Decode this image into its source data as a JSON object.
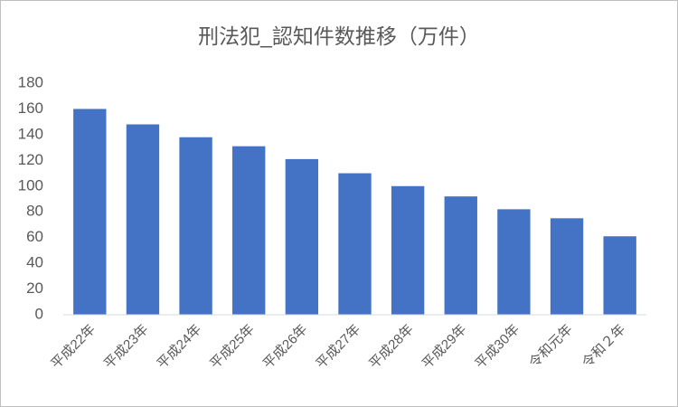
{
  "chart_data": {
    "type": "bar",
    "title": "刑法犯_認知件数推移（万件）",
    "categories": [
      "平成22年",
      "平成23年",
      "平成24年",
      "平成25年",
      "平成26年",
      "平成27年",
      "平成28年",
      "平成29年",
      "平成30年",
      "令和元年",
      "令和２年"
    ],
    "values": [
      160,
      148,
      138,
      131,
      121,
      110,
      100,
      92,
      82,
      75,
      61
    ],
    "color": "#4472c4",
    "ylim": [
      0,
      180
    ],
    "yticks": [
      0,
      20,
      40,
      60,
      80,
      100,
      120,
      140,
      160,
      180
    ],
    "grid": false
  }
}
